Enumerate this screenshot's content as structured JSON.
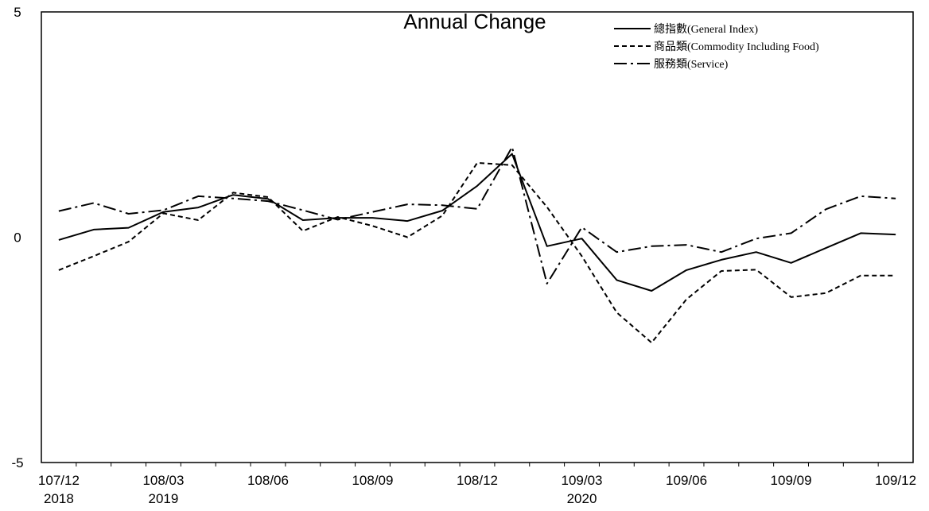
{
  "chart_data": {
    "type": "line",
    "title": "Annual Change",
    "xlabel": "",
    "ylabel": "",
    "ylim": [
      -5,
      5
    ],
    "yticks": [
      "5",
      "0",
      "-5"
    ],
    "x_tick_labels": [
      {
        "line1": "107/12",
        "line2": "2018"
      },
      {
        "line1": "108/03",
        "line2": "2019"
      },
      {
        "line1": "108/06",
        "line2": ""
      },
      {
        "line1": "108/09",
        "line2": ""
      },
      {
        "line1": "108/12",
        "line2": ""
      },
      {
        "line1": "109/03",
        "line2": "2020"
      },
      {
        "line1": "109/06",
        "line2": ""
      },
      {
        "line1": "109/09",
        "line2": ""
      },
      {
        "line1": "109/12",
        "line2": ""
      }
    ],
    "x": [
      "107/12",
      "108/01",
      "108/02",
      "108/03",
      "108/04",
      "108/05",
      "108/06",
      "108/07",
      "108/08",
      "108/09",
      "108/10",
      "108/11",
      "108/12",
      "109/01",
      "109/02",
      "109/03",
      "109/04",
      "109/05",
      "109/06",
      "109/07",
      "109/08",
      "109/09",
      "109/10",
      "109/11",
      "109/12"
    ],
    "legend_position": "top-right",
    "grid": false,
    "series": [
      {
        "name": "總指數(General Index)",
        "dash": "solid",
        "values": [
          -0.06,
          0.17,
          0.21,
          0.56,
          0.66,
          0.94,
          0.85,
          0.38,
          0.43,
          0.43,
          0.36,
          0.59,
          1.14,
          1.85,
          -0.2,
          -0.03,
          -0.95,
          -1.19,
          -0.73,
          -0.5,
          -0.33,
          -0.57,
          -0.24,
          0.09,
          0.06
        ]
      },
      {
        "name": "商品類(Commodity Including Food)",
        "dash": "dashed",
        "values": [
          -0.73,
          -0.42,
          -0.1,
          0.53,
          0.38,
          0.99,
          0.89,
          0.14,
          0.45,
          0.25,
          0.0,
          0.48,
          1.65,
          1.6,
          0.67,
          -0.42,
          -1.67,
          -2.34,
          -1.38,
          -0.75,
          -0.72,
          -1.33,
          -1.24,
          -0.85,
          -0.85
        ]
      },
      {
        "name": "服務類(Service)",
        "dash": "dashdot",
        "values": [
          0.58,
          0.76,
          0.52,
          0.6,
          0.91,
          0.86,
          0.8,
          0.6,
          0.39,
          0.56,
          0.73,
          0.71,
          0.63,
          2.0,
          -1.03,
          0.22,
          -0.33,
          -0.2,
          -0.17,
          -0.33,
          -0.03,
          0.09,
          0.62,
          0.91,
          0.86
        ]
      }
    ]
  }
}
